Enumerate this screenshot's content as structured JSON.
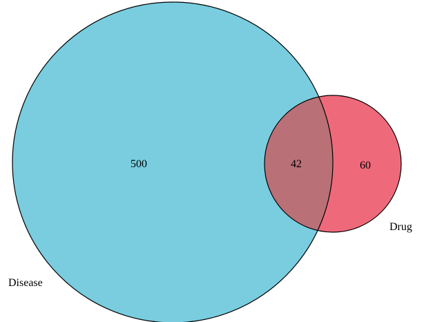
{
  "venn": {
    "sets": [
      {
        "name": "Disease",
        "color": "#79CDDF"
      },
      {
        "name": "Drug",
        "color": "#EE6A7B"
      }
    ],
    "regions": {
      "disease_only": "500",
      "intersection": "42",
      "drug_only": "60"
    },
    "intersection_color": "#BA7077",
    "outline_color": "#000000"
  }
}
